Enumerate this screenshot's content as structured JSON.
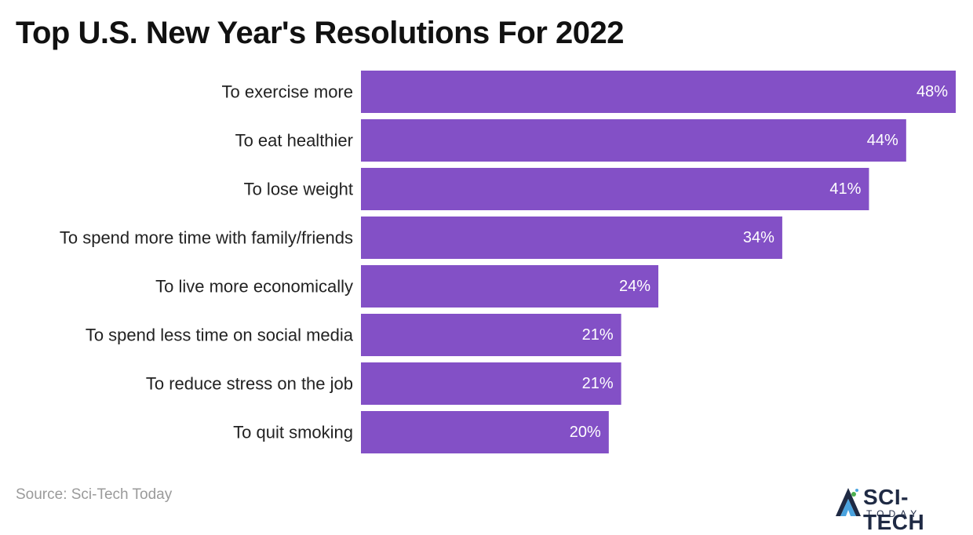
{
  "chart_data": {
    "type": "bar",
    "orientation": "horizontal",
    "title": "Top U.S. New Year's Resolutions For 2022",
    "categories": [
      "To exercise more",
      "To eat healthier",
      "To lose weight",
      "To spend more time with family/friends",
      "To live more economically",
      "To spend less time on social media",
      "To reduce stress on the job",
      "To quit smoking"
    ],
    "values": [
      48,
      44,
      41,
      34,
      24,
      21,
      21,
      20
    ],
    "value_suffix": "%",
    "xlim": [
      0,
      48
    ],
    "bar_color": "#8350c6",
    "grid": false,
    "xlabel": "",
    "ylabel": ""
  },
  "source": "Source: Sci-Tech Today",
  "logo": {
    "name": "SCI-TECH",
    "tagline": "TODAY",
    "icon": "sci-tech-logo-icon",
    "colors": [
      "#1f2a44",
      "#4aa3df",
      "#4caf50"
    ]
  }
}
